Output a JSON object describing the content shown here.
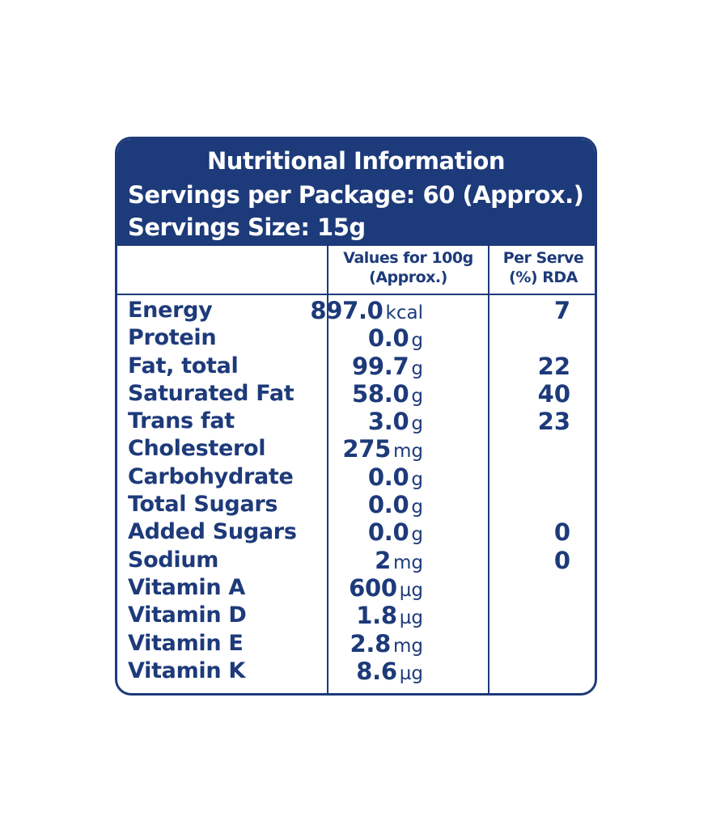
{
  "header": {
    "title": "Nutritional Information",
    "servings_per_package": "Servings per Package: 60 (Approx.)",
    "serving_size": "Servings Size: 15g"
  },
  "columns": {
    "values_line1": "Values for 100g",
    "values_line2": "(Approx.)",
    "rda_line1": "Per Serve",
    "rda_line2": "(%) RDA"
  },
  "rows": [
    {
      "name": "Energy",
      "value": "897.0",
      "unit": "kcal",
      "rda": "7"
    },
    {
      "name": "Protein",
      "value": "0.0",
      "unit": "g",
      "rda": ""
    },
    {
      "name": "Fat, total",
      "value": "99.7",
      "unit": "g",
      "rda": "22"
    },
    {
      "name": "Saturated Fat",
      "value": "58.0",
      "unit": "g",
      "rda": "40"
    },
    {
      "name": "Trans fat",
      "value": "3.0",
      "unit": "g",
      "rda": "23"
    },
    {
      "name": "Cholesterol",
      "value": "275",
      "unit": "mg",
      "rda": ""
    },
    {
      "name": "Carbohydrate",
      "value": "0.0",
      "unit": "g",
      "rda": ""
    },
    {
      "name": "Total Sugars",
      "value": "0.0",
      "unit": "g",
      "rda": ""
    },
    {
      "name": "Added Sugars",
      "value": "0.0",
      "unit": "g",
      "rda": "0"
    },
    {
      "name": "Sodium",
      "value": "2",
      "unit": "mg",
      "rda": "0"
    },
    {
      "name": "Vitamin A",
      "value": "600",
      "unit": "µg",
      "rda": ""
    },
    {
      "name": "Vitamin D",
      "value": "1.8",
      "unit": "µg",
      "rda": ""
    },
    {
      "name": "Vitamin E",
      "value": "2.8",
      "unit": "mg",
      "rda": ""
    },
    {
      "name": "Vitamin K",
      "value": "8.6",
      "unit": "µg",
      "rda": ""
    }
  ],
  "colors": {
    "brand": "#1d3a7a",
    "background": "#ffffff"
  }
}
